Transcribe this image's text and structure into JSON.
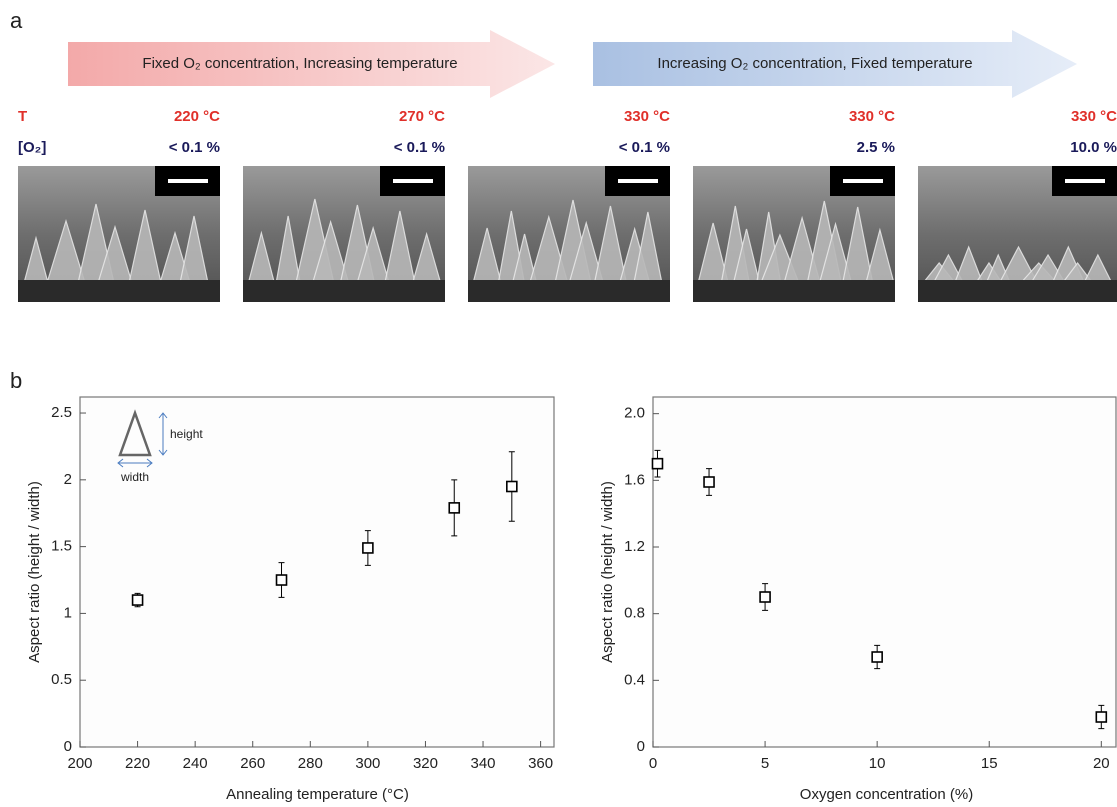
{
  "panels": {
    "a": "a",
    "b": "b"
  },
  "top": {
    "arrows": [
      "Fixed O₂ concentration, Increasing temperature",
      "Increasing O₂ concentration, Fixed temperature"
    ],
    "row_labels": {
      "t": "T",
      "o2": "[O₂]"
    },
    "temperatures": [
      "220 °C",
      "270 °C",
      "330 °C",
      "330 °C",
      "330 °C"
    ],
    "o2": [
      "< 0.1 %",
      "< 0.1 %",
      "< 0.1 %",
      "2.5 %",
      "10.0 %"
    ]
  },
  "chart_data": [
    {
      "type": "scatter",
      "x_label": "Annealing temperature (°C)",
      "y_label": "Aspect ratio (height / width)",
      "inset_labels": [
        "height",
        "width"
      ],
      "x": [
        220,
        270,
        300,
        330,
        350
      ],
      "values": [
        1.1,
        1.25,
        1.49,
        1.79,
        1.95
      ],
      "errors": [
        0.05,
        0.13,
        0.13,
        0.21,
        0.26
      ],
      "color": "#000000",
      "xlim": [
        200,
        365
      ],
      "ylim": [
        0,
        2.62
      ],
      "xticks": [
        200,
        220,
        240,
        260,
        280,
        300,
        320,
        340,
        360
      ],
      "yticks": [
        0,
        0.5,
        1,
        1.5,
        2,
        2.5
      ]
    },
    {
      "type": "scatter",
      "x_label": "Oxygen concentration (%)",
      "y_label": "Aspect ratio (height / width)",
      "x": [
        0.2,
        2.5,
        5,
        10,
        20
      ],
      "values": [
        1.7,
        1.59,
        0.9,
        0.54,
        0.18
      ],
      "errors": [
        0.08,
        0.08,
        0.08,
        0.07,
        0.07
      ],
      "color": "#000000",
      "xlim": [
        0,
        20.7
      ],
      "ylim": [
        0,
        2.1
      ],
      "xticks": [
        0,
        5,
        10,
        15,
        20
      ],
      "yticks": [
        0,
        0.4,
        0.8,
        1.2,
        1.6,
        {
          "value": 2,
          "label": "2.0"
        }
      ]
    }
  ]
}
